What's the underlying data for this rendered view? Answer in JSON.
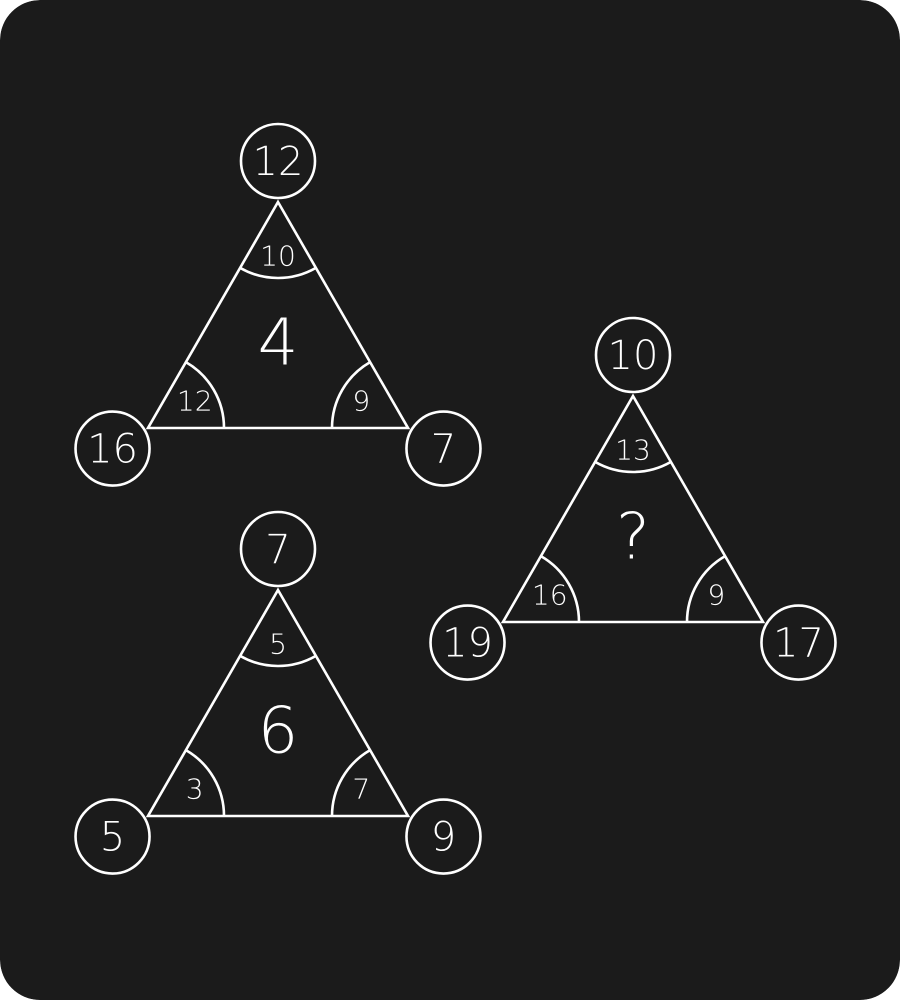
{
  "colors": {
    "background": "#1b1b1b",
    "line": "#ffffff",
    "text": "#ffffff"
  },
  "puzzle": {
    "triangles": [
      {
        "id": "top-left",
        "center": "4",
        "vertices": {
          "top": "12",
          "left": "16",
          "right": "7"
        },
        "angles": {
          "top": "10",
          "left": "12",
          "right": "9"
        }
      },
      {
        "id": "bottom-left",
        "center": "6",
        "vertices": {
          "top": "7",
          "left": "5",
          "right": "9"
        },
        "angles": {
          "top": "5",
          "left": "3",
          "right": "7"
        }
      },
      {
        "id": "right",
        "center": "?",
        "vertices": {
          "top": "10",
          "left": "19",
          "right": "17"
        },
        "angles": {
          "top": "13",
          "left": "16",
          "right": "9"
        }
      }
    ]
  }
}
